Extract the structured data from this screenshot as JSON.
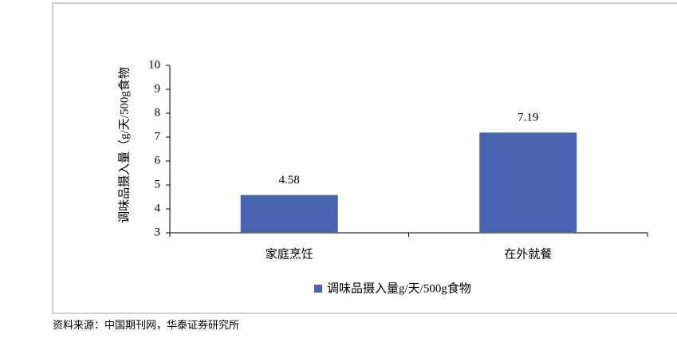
{
  "chart_data": {
    "type": "bar",
    "y_axis_label": "调味品摄入量（g/天/500g食物",
    "categories": [
      "家庭烹饪",
      "在外就餐"
    ],
    "series": [
      {
        "name": "调味品摄入量g/天/500g食物",
        "color": "#4864ae",
        "values": [
          4.58,
          7.19
        ]
      }
    ],
    "ylim": [
      3,
      10
    ],
    "yticks": [
      3,
      4,
      5,
      6,
      7,
      8,
      9,
      10
    ],
    "source": "资料来源：中国期刊网，华泰证券研究所"
  }
}
